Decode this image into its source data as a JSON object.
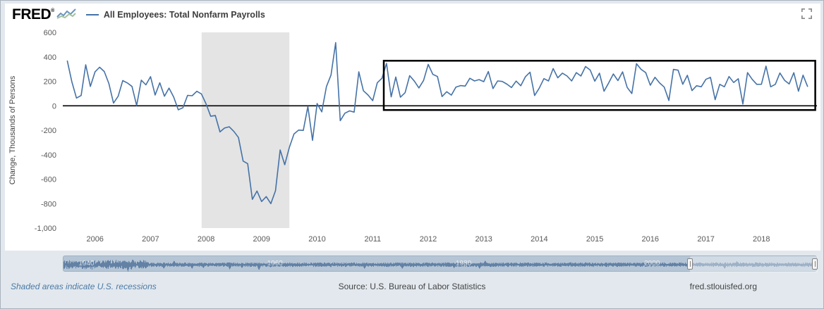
{
  "header": {
    "logo": "FRED",
    "trademark": "®",
    "series_label": "All Employees: Total Nonfarm Payrolls"
  },
  "footer": {
    "recession_note": "Shaded areas indicate U.S. recessions",
    "source": "Source: U.S. Bureau of Labor Statistics",
    "site": "fred.stlouisfed.org"
  },
  "colors": {
    "series": "#4572a7",
    "recession": "#e4e4e4",
    "annotation": "#000000",
    "zero_line": "#000000",
    "nav_track": "#b5c5d5",
    "nav_wave": "#54749c",
    "axis_text": "#585858"
  },
  "chart_data": {
    "type": "line",
    "title": "All Employees: Total Nonfarm Payrolls",
    "ylabel": "Change, Thousands of Persons",
    "ylim": [
      -1000,
      600
    ],
    "y_ticks": [
      600,
      400,
      200,
      0,
      -200,
      -400,
      -600,
      -800,
      -1000
    ],
    "x_ticks": [
      2006,
      2007,
      2008,
      2009,
      2010,
      2011,
      2012,
      2013,
      2014,
      2015,
      2016,
      2017,
      2018
    ],
    "x_start": 2005.5,
    "x_step": 0.0833,
    "grid": false,
    "legend_position": "top",
    "values": [
      369,
      195,
      63,
      84,
      335,
      158,
      277,
      315,
      280,
      182,
      22,
      78,
      206,
      186,
      158,
      2,
      209,
      171,
      238,
      88,
      188,
      78,
      144,
      71,
      -33,
      -16,
      85,
      82,
      118,
      97,
      15,
      -86,
      -80,
      -214,
      -182,
      -172,
      -210,
      -259,
      -452,
      -474,
      -765,
      -697,
      -783,
      -743,
      -800,
      -695,
      -361,
      -482,
      -339,
      -231,
      -199,
      -202,
      -6,
      -283,
      18,
      -50,
      156,
      251,
      516,
      -122,
      -61,
      -42,
      -52,
      277,
      123,
      88,
      42,
      188,
      225,
      346,
      73,
      235,
      70,
      107,
      246,
      202,
      146,
      207,
      338,
      257,
      239,
      75,
      115,
      87,
      153,
      165,
      161,
      225,
      203,
      214,
      197,
      280,
      141,
      203,
      199,
      177,
      149,
      202,
      164,
      237,
      274,
      84,
      144,
      222,
      203,
      304,
      229,
      267,
      243,
      203,
      271,
      243,
      321,
      292,
      201,
      266,
      119,
      187,
      260,
      206,
      277,
      150,
      100,
      344,
      298,
      271,
      168,
      233,
      186,
      153,
      43,
      297,
      291,
      176,
      249,
      124,
      164,
      155,
      216,
      232,
      50,
      175,
      155,
      239,
      190,
      221,
      14,
      271,
      216,
      175,
      176,
      324,
      155,
      175,
      268,
      208,
      178,
      270,
      119,
      250,
      155
    ],
    "zero_line_value": 0,
    "recession_band": {
      "start": 2007.92,
      "end": 2009.5
    },
    "annotation_box": {
      "x1": 2011.2,
      "x2": 2018.97,
      "y1": -35,
      "y2": 368
    },
    "navigator": {
      "x_range": [
        1939,
        2019
      ],
      "tick_labels": [
        "1940",
        "1960",
        "1980",
        "2000"
      ],
      "selected_range": [
        2005.42,
        2019
      ]
    }
  }
}
